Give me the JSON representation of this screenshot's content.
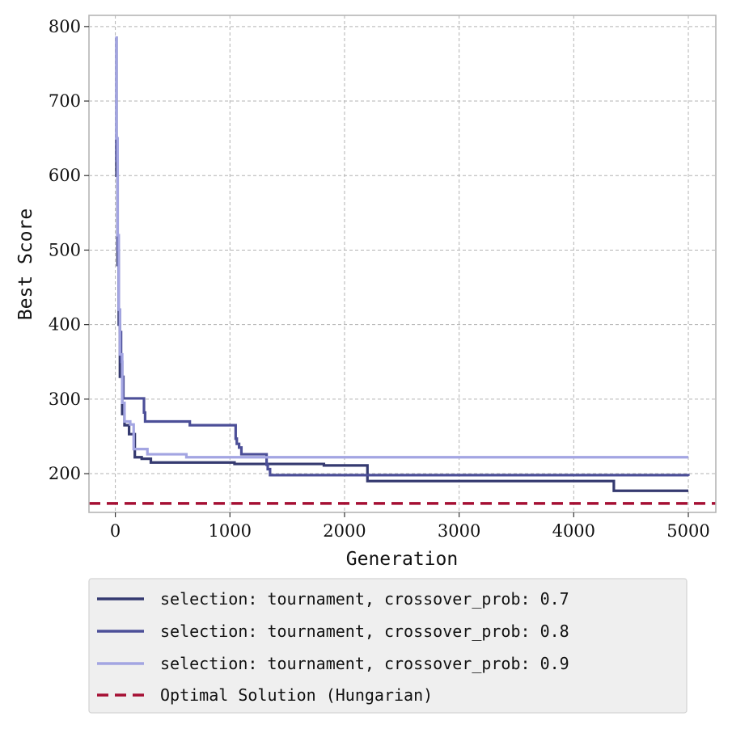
{
  "chart_data": {
    "type": "line",
    "title": "",
    "xlabel": "Generation",
    "ylabel": "Best Score",
    "xlim": [
      -230,
      5240
    ],
    "ylim": [
      148,
      815
    ],
    "xticks": [
      0,
      1000,
      2000,
      3000,
      4000,
      5000
    ],
    "yticks": [
      200,
      300,
      400,
      500,
      600,
      700,
      800
    ],
    "xtick_labels": [
      "0",
      "1000",
      "2000",
      "3000",
      "4000",
      "5000"
    ],
    "ytick_labels": [
      "200",
      "300",
      "400",
      "500",
      "600",
      "700",
      "800"
    ],
    "grid": true,
    "legend_position": "below",
    "series": [
      {
        "name": "selection:  tournament, crossover_prob:  0.7",
        "color": "#353a70",
        "style": "solid",
        "x": [
          0,
          10,
          20,
          30,
          40,
          60,
          80,
          120,
          170,
          230,
          310,
          630,
          1040,
          1300,
          1820,
          2170,
          2200,
          4330,
          4350,
          5000
        ],
        "y": [
          785,
          600,
          480,
          400,
          330,
          280,
          265,
          253,
          222,
          220,
          215,
          215,
          213,
          213,
          211,
          211,
          190,
          190,
          177,
          177
        ]
      },
      {
        "name": "selection:  tournament, crossover_prob:  0.8",
        "color": "#4c4f98",
        "style": "solid",
        "x": [
          0,
          10,
          20,
          30,
          40,
          50,
          60,
          70,
          240,
          250,
          260,
          630,
          650,
          1020,
          1050,
          1060,
          1080,
          1100,
          1310,
          1320,
          1330,
          1350,
          5000
        ],
        "y": [
          785,
          620,
          500,
          420,
          390,
          350,
          330,
          301,
          301,
          282,
          270,
          270,
          265,
          265,
          247,
          240,
          235,
          226,
          226,
          212,
          206,
          198,
          197
        ]
      },
      {
        "name": "selection:  tournament, crossover_prob:  0.9",
        "color": "#a3a5e2",
        "style": "solid",
        "x": [
          0,
          10,
          20,
          30,
          40,
          60,
          80,
          130,
          160,
          280,
          620,
          5000
        ],
        "y": [
          785,
          650,
          520,
          420,
          360,
          295,
          270,
          266,
          233,
          226,
          222,
          222
        ]
      },
      {
        "name": "Optimal Solution (Hungarian)",
        "color": "#a50f33",
        "style": "dashed",
        "y_const": 160
      }
    ]
  }
}
